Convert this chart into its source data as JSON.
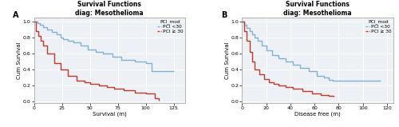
{
  "panel_A": {
    "title_line1": "Survival Functions",
    "title_line2": "diag: Mesothelioma",
    "xlabel": "Survival (m)",
    "ylabel": "Cum Survival",
    "legend_title": "PCI_mod",
    "legend_labels": [
      "PCI <30",
      "PCI ≥ 30"
    ],
    "xlim": [
      0,
      135
    ],
    "ylim": [
      -0.02,
      1.05
    ],
    "xticks": [
      0,
      25,
      50,
      75,
      100,
      125
    ],
    "yticks": [
      0.0,
      0.2,
      0.4,
      0.6,
      0.8,
      1.0
    ],
    "panel_label": "A",
    "color_low": "#7fb3d3",
    "color_high": "#c0392b",
    "km_low_x": [
      0,
      3,
      5,
      8,
      12,
      16,
      20,
      24,
      26,
      30,
      35,
      42,
      48,
      55,
      62,
      70,
      78,
      90,
      100,
      105,
      108,
      125
    ],
    "km_low_y": [
      1.0,
      0.98,
      0.96,
      0.93,
      0.9,
      0.87,
      0.84,
      0.8,
      0.78,
      0.76,
      0.74,
      0.7,
      0.65,
      0.62,
      0.6,
      0.56,
      0.52,
      0.5,
      0.48,
      0.38,
      0.38,
      0.38
    ],
    "km_high_x": [
      0,
      2,
      4,
      6,
      8,
      12,
      18,
      24,
      30,
      38,
      45,
      50,
      58,
      65,
      72,
      80,
      90,
      100,
      108,
      112
    ],
    "km_high_y": [
      1.0,
      0.88,
      0.82,
      0.76,
      0.7,
      0.6,
      0.48,
      0.4,
      0.32,
      0.26,
      0.24,
      0.22,
      0.2,
      0.18,
      0.16,
      0.14,
      0.11,
      0.1,
      0.04,
      0.01
    ]
  },
  "panel_B": {
    "title_line1": "Survival Functions",
    "title_line2": "diag: Mesothelioma",
    "xlabel": "Disease free (m)",
    "ylabel": "Cum Survival",
    "legend_title": "PCI_mod",
    "legend_labels": [
      "PCI <30",
      "PCI ≥ 30"
    ],
    "xlim": [
      0,
      125
    ],
    "ylim": [
      -0.02,
      1.05
    ],
    "xticks": [
      0,
      20,
      40,
      60,
      80,
      100,
      120
    ],
    "yticks": [
      0.0,
      0.2,
      0.4,
      0.6,
      0.8,
      1.0
    ],
    "panel_label": "B",
    "color_low": "#7fb3d3",
    "color_high": "#c0392b",
    "km_low_x": [
      0,
      2,
      4,
      6,
      8,
      10,
      13,
      16,
      20,
      25,
      30,
      36,
      42,
      48,
      55,
      62,
      68,
      72,
      75,
      80,
      110,
      115
    ],
    "km_low_y": [
      1.0,
      0.96,
      0.92,
      0.88,
      0.84,
      0.8,
      0.76,
      0.7,
      0.64,
      0.58,
      0.54,
      0.5,
      0.46,
      0.42,
      0.38,
      0.32,
      0.3,
      0.27,
      0.26,
      0.26,
      0.26,
      0.26
    ],
    "km_high_x": [
      0,
      2,
      4,
      6,
      8,
      10,
      14,
      18,
      22,
      26,
      30,
      36,
      42,
      50,
      58,
      65,
      72,
      76
    ],
    "km_high_y": [
      1.0,
      0.88,
      0.76,
      0.62,
      0.5,
      0.4,
      0.34,
      0.28,
      0.24,
      0.22,
      0.2,
      0.18,
      0.16,
      0.13,
      0.1,
      0.08,
      0.07,
      0.06
    ]
  },
  "bg_color": "#edf0f5",
  "grid_color": "#ffffff",
  "title_fontsize": 5.5,
  "label_fontsize": 5.0,
  "tick_fontsize": 4.5,
  "legend_fontsize": 4.2,
  "line_width": 1.0
}
